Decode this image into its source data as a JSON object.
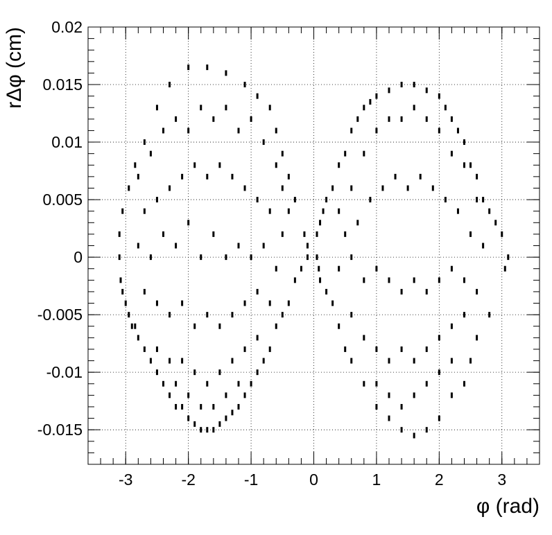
{
  "chart_data": {
    "type": "scatter",
    "title": "",
    "xlabel": "φ (rad)",
    "ylabel": "rΔφ (cm)",
    "xlim": [
      -3.6,
      3.6
    ],
    "ylim": [
      -0.018,
      0.02
    ],
    "grid": true,
    "xticks": [
      -3,
      -2,
      -1,
      0,
      1,
      2,
      3
    ],
    "xtick_labels": [
      "-3",
      "-2",
      "-1",
      "0",
      "1",
      "2",
      "3"
    ],
    "yticks": [
      -0.015,
      -0.01,
      -0.005,
      0,
      0.005,
      0.01,
      0.015,
      0.02
    ],
    "ytick_labels": [
      "-0.015",
      "-0.01",
      "-0.005",
      "0",
      "0.005",
      "0.01",
      "0.015",
      "0.02"
    ],
    "point_color": "#000000",
    "series": [
      {
        "lobe": "negative-phi",
        "points": [
          [
            -3.1,
            0.002
          ],
          [
            -3.1,
            0.0
          ],
          [
            -3.08,
            -0.002
          ],
          [
            -3.05,
            -0.003
          ],
          [
            -3.0,
            -0.004
          ],
          [
            -2.95,
            -0.005
          ],
          [
            -2.9,
            -0.006
          ],
          [
            -2.85,
            -0.006
          ],
          [
            -2.8,
            -0.007
          ],
          [
            -2.7,
            -0.008
          ],
          [
            -2.6,
            -0.009
          ],
          [
            -2.5,
            -0.01
          ],
          [
            -2.4,
            -0.011
          ],
          [
            -2.3,
            -0.012
          ],
          [
            -2.2,
            -0.013
          ],
          [
            -2.1,
            -0.013
          ],
          [
            -2.0,
            -0.014
          ],
          [
            -1.9,
            -0.0145
          ],
          [
            -1.8,
            -0.015
          ],
          [
            -1.7,
            -0.015
          ],
          [
            -1.6,
            -0.015
          ],
          [
            -1.5,
            -0.0145
          ],
          [
            -1.4,
            -0.014
          ],
          [
            -1.3,
            -0.0135
          ],
          [
            -1.2,
            -0.013
          ],
          [
            -1.1,
            -0.012
          ],
          [
            -1.0,
            -0.011
          ],
          [
            -0.9,
            -0.01
          ],
          [
            -0.8,
            -0.009
          ],
          [
            -0.7,
            -0.008
          ],
          [
            -0.6,
            -0.006
          ],
          [
            -0.5,
            -0.005
          ],
          [
            -0.4,
            -0.004
          ],
          [
            -0.3,
            -0.002
          ],
          [
            -0.2,
            -0.001
          ],
          [
            -0.1,
            0.0
          ],
          [
            -0.1,
            0.001
          ],
          [
            -0.15,
            0.002
          ],
          [
            -0.3,
            0.005
          ],
          [
            -0.4,
            0.007
          ],
          [
            -0.5,
            0.009
          ],
          [
            -0.6,
            0.011
          ],
          [
            -0.7,
            0.013
          ],
          [
            -0.9,
            0.014
          ],
          [
            -1.1,
            0.015
          ],
          [
            -1.4,
            0.016
          ],
          [
            -1.7,
            0.0165
          ],
          [
            -2.0,
            0.0165
          ],
          [
            -2.3,
            0.015
          ],
          [
            -2.5,
            0.013
          ],
          [
            -2.7,
            0.01
          ],
          [
            -2.85,
            0.008
          ],
          [
            -2.95,
            0.006
          ],
          [
            -3.05,
            0.004
          ],
          [
            -2.8,
            0.007
          ],
          [
            -2.6,
            0.009
          ],
          [
            -2.4,
            0.011
          ],
          [
            -2.2,
            0.012
          ],
          [
            -2.0,
            0.011
          ],
          [
            -1.8,
            0.013
          ],
          [
            -1.6,
            0.012
          ],
          [
            -1.4,
            0.013
          ],
          [
            -1.2,
            0.011
          ],
          [
            -1.0,
            0.012
          ],
          [
            -0.8,
            0.01
          ],
          [
            -0.6,
            0.008
          ],
          [
            -0.5,
            0.006
          ],
          [
            -0.4,
            0.004
          ],
          [
            -2.7,
            0.004
          ],
          [
            -2.5,
            0.005
          ],
          [
            -2.3,
            0.006
          ],
          [
            -2.1,
            0.007
          ],
          [
            -1.9,
            0.008
          ],
          [
            -1.7,
            0.007
          ],
          [
            -1.5,
            0.008
          ],
          [
            -1.3,
            0.007
          ],
          [
            -1.1,
            0.006
          ],
          [
            -0.9,
            0.005
          ],
          [
            -0.7,
            0.004
          ],
          [
            -0.5,
            0.002
          ],
          [
            -2.8,
            0.001
          ],
          [
            -2.6,
            0.0
          ],
          [
            -2.4,
            0.002
          ],
          [
            -2.2,
            0.001
          ],
          [
            -2.0,
            0.003
          ],
          [
            -1.8,
            0.0
          ],
          [
            -1.6,
            0.002
          ],
          [
            -1.4,
            0.0
          ],
          [
            -1.2,
            0.001
          ],
          [
            -1.0,
            0.0
          ],
          [
            -0.8,
            0.001
          ],
          [
            -0.6,
            -0.001
          ],
          [
            -2.7,
            -0.003
          ],
          [
            -2.5,
            -0.004
          ],
          [
            -2.3,
            -0.005
          ],
          [
            -2.1,
            -0.004
          ],
          [
            -1.9,
            -0.006
          ],
          [
            -1.7,
            -0.005
          ],
          [
            -1.5,
            -0.006
          ],
          [
            -1.3,
            -0.005
          ],
          [
            -1.1,
            -0.004
          ],
          [
            -0.9,
            -0.003
          ],
          [
            -0.7,
            -0.004
          ],
          [
            -2.5,
            -0.008
          ],
          [
            -2.3,
            -0.009
          ],
          [
            -2.1,
            -0.009
          ],
          [
            -1.9,
            -0.01
          ],
          [
            -1.7,
            -0.011
          ],
          [
            -1.5,
            -0.01
          ],
          [
            -1.3,
            -0.009
          ],
          [
            -1.1,
            -0.008
          ],
          [
            -0.9,
            -0.007
          ],
          [
            -2.2,
            -0.011
          ],
          [
            -2.0,
            -0.012
          ],
          [
            -1.8,
            -0.013
          ],
          [
            -1.6,
            -0.013
          ],
          [
            -1.4,
            -0.012
          ],
          [
            -1.2,
            -0.011
          ]
        ]
      },
      {
        "lobe": "positive-phi",
        "points": [
          [
            0.05,
            0.002
          ],
          [
            0.05,
            0.0
          ],
          [
            0.08,
            -0.001
          ],
          [
            0.1,
            -0.002
          ],
          [
            0.1,
            0.003
          ],
          [
            0.15,
            0.004
          ],
          [
            0.2,
            0.005
          ],
          [
            0.3,
            0.006
          ],
          [
            0.4,
            0.008
          ],
          [
            0.5,
            0.009
          ],
          [
            0.6,
            0.011
          ],
          [
            0.7,
            0.012
          ],
          [
            0.8,
            0.013
          ],
          [
            0.9,
            0.0135
          ],
          [
            1.0,
            0.014
          ],
          [
            1.2,
            0.0145
          ],
          [
            1.4,
            0.015
          ],
          [
            1.6,
            0.015
          ],
          [
            1.8,
            0.0145
          ],
          [
            2.0,
            0.014
          ],
          [
            2.1,
            0.013
          ],
          [
            2.2,
            0.012
          ],
          [
            2.3,
            0.011
          ],
          [
            2.4,
            0.01
          ],
          [
            2.5,
            0.008
          ],
          [
            2.6,
            0.007
          ],
          [
            2.7,
            0.005
          ],
          [
            2.8,
            0.004
          ],
          [
            2.9,
            0.003
          ],
          [
            3.0,
            0.002
          ],
          [
            3.1,
            0.0
          ],
          [
            3.05,
            -0.001
          ],
          [
            0.2,
            -0.003
          ],
          [
            0.3,
            -0.004
          ],
          [
            0.4,
            -0.006
          ],
          [
            0.5,
            -0.008
          ],
          [
            0.6,
            -0.009
          ],
          [
            0.8,
            -0.011
          ],
          [
            1.0,
            -0.013
          ],
          [
            1.2,
            -0.014
          ],
          [
            1.4,
            -0.015
          ],
          [
            1.6,
            -0.0155
          ],
          [
            1.8,
            -0.015
          ],
          [
            2.0,
            -0.014
          ],
          [
            2.2,
            -0.012
          ],
          [
            2.4,
            -0.011
          ],
          [
            2.5,
            -0.009
          ],
          [
            2.6,
            -0.007
          ],
          [
            2.8,
            -0.005
          ],
          [
            0.4,
            0.004
          ],
          [
            0.6,
            0.006
          ],
          [
            0.8,
            0.009
          ],
          [
            1.0,
            0.011
          ],
          [
            1.2,
            0.012
          ],
          [
            1.4,
            0.012
          ],
          [
            1.6,
            0.013
          ],
          [
            1.8,
            0.012
          ],
          [
            2.0,
            0.011
          ],
          [
            2.2,
            0.009
          ],
          [
            2.4,
            0.008
          ],
          [
            2.6,
            0.005
          ],
          [
            0.5,
            0.002
          ],
          [
            0.7,
            0.003
          ],
          [
            0.9,
            0.005
          ],
          [
            1.1,
            0.006
          ],
          [
            1.3,
            0.007
          ],
          [
            1.5,
            0.006
          ],
          [
            1.7,
            0.007
          ],
          [
            1.9,
            0.006
          ],
          [
            2.1,
            0.005
          ],
          [
            2.3,
            0.004
          ],
          [
            2.5,
            0.002
          ],
          [
            2.7,
            0.001
          ],
          [
            0.4,
            -0.001
          ],
          [
            0.6,
            0.0
          ],
          [
            0.8,
            -0.002
          ],
          [
            1.0,
            -0.001
          ],
          [
            1.2,
            -0.002
          ],
          [
            1.4,
            -0.003
          ],
          [
            1.6,
            -0.002
          ],
          [
            1.8,
            -0.003
          ],
          [
            2.0,
            -0.002
          ],
          [
            2.2,
            -0.001
          ],
          [
            2.4,
            -0.002
          ],
          [
            2.6,
            -0.003
          ],
          [
            0.6,
            -0.005
          ],
          [
            0.8,
            -0.007
          ],
          [
            1.0,
            -0.008
          ],
          [
            1.2,
            -0.009
          ],
          [
            1.4,
            -0.008
          ],
          [
            1.6,
            -0.009
          ],
          [
            1.8,
            -0.008
          ],
          [
            2.0,
            -0.007
          ],
          [
            2.2,
            -0.006
          ],
          [
            2.4,
            -0.005
          ],
          [
            1.0,
            -0.011
          ],
          [
            1.2,
            -0.012
          ],
          [
            1.4,
            -0.013
          ],
          [
            1.6,
            -0.012
          ],
          [
            1.8,
            -0.011
          ],
          [
            2.0,
            -0.01
          ],
          [
            2.2,
            -0.009
          ]
        ]
      }
    ]
  }
}
